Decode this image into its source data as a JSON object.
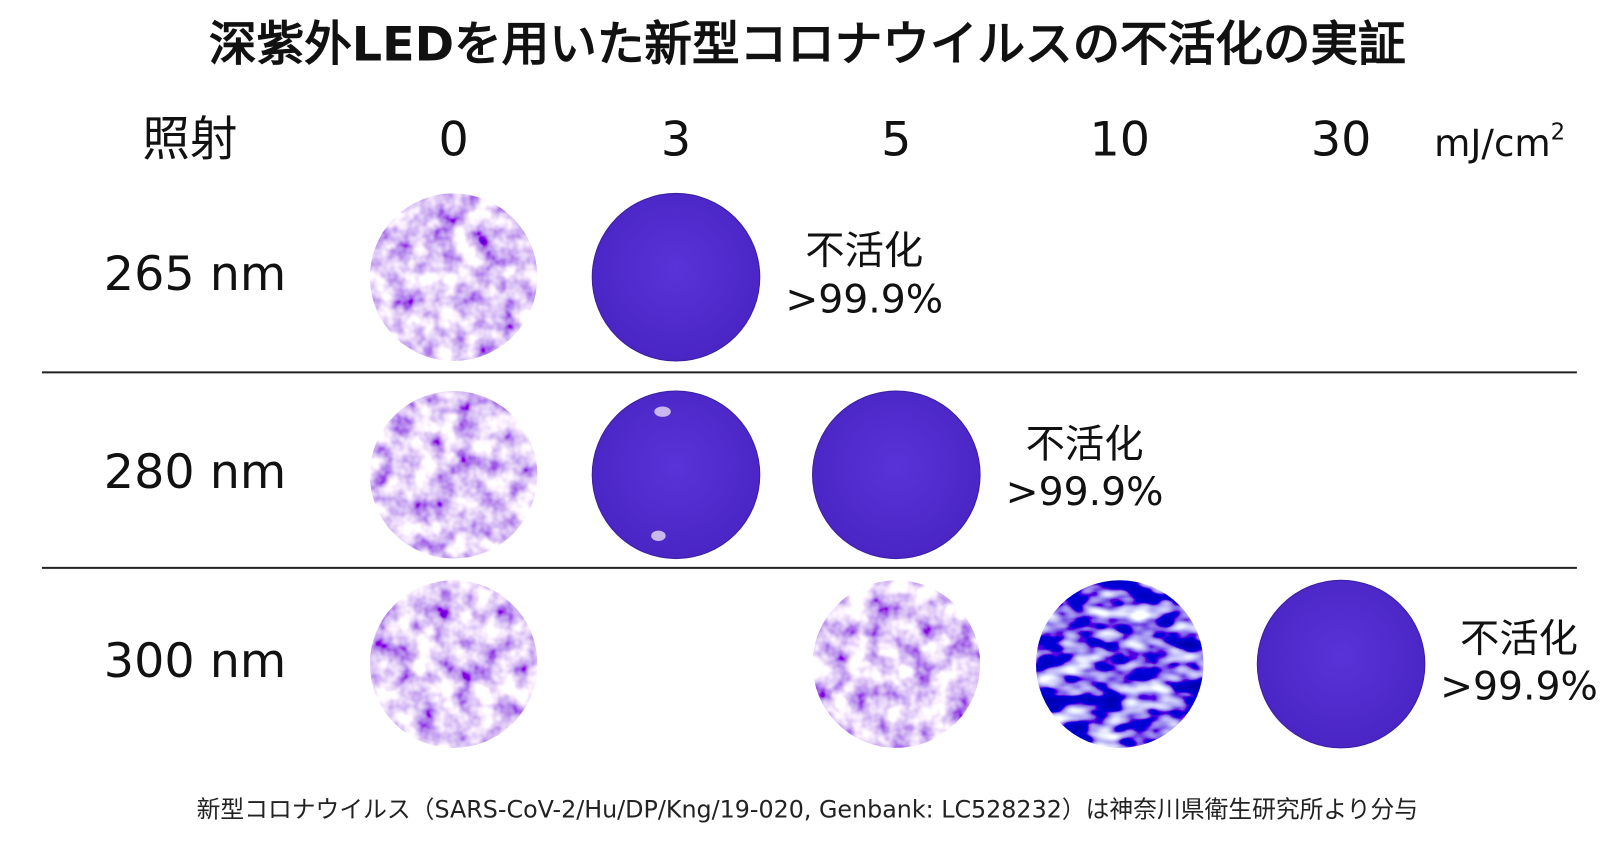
{
  "title": "深紫外LEDを用いた新型コロナウイルスの不活化の実証",
  "header": {
    "row_label": "照射",
    "doses": [
      "0",
      "3",
      "5",
      "10",
      "30"
    ],
    "unit": "mJ/cm",
    "unit_superscript": "2"
  },
  "rows": [
    {
      "label": "265 nm",
      "result_label": "不活化",
      "result_value": ">99.9%"
    },
    {
      "label": "280 nm",
      "result_label": "不活化",
      "result_value": ">99.9%"
    },
    {
      "label": "300 nm",
      "result_label": "不活化",
      "result_value": ">99.9%"
    }
  ],
  "footer": "新型コロナウイルス（SARS-CoV-2/Hu/DP/Kng/19-020, Genbank: LC528232）は神奈川県衛生研究所より分与"
}
